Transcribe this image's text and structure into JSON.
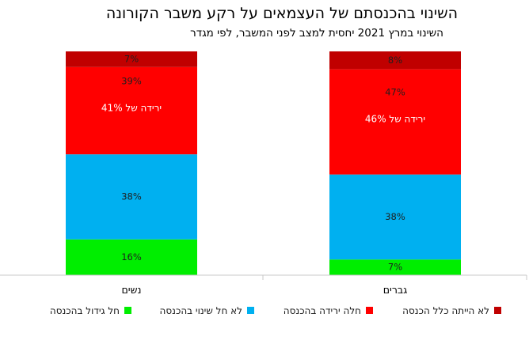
{
  "chart_data": {
    "type": "bar",
    "stacked": true,
    "percent": true,
    "title": "השינוי בהכנסתם של העצמאים על רקע משבר הקורונה",
    "subtitle": "השינוי במרץ 2021 יחסית למצב לפני המשבר, לפי מגדר",
    "categories": [
      "נשים",
      "גברים"
    ],
    "series": [
      {
        "name": "חל גידול בהכנסה",
        "color": "#00ee00",
        "values": [
          16,
          7
        ],
        "labels": [
          "16%",
          "7%"
        ]
      },
      {
        "name": "לא חל שינוי בהכנסה",
        "color": "#00b0f0",
        "values": [
          38,
          38
        ],
        "labels": [
          "38%",
          "38%"
        ]
      },
      {
        "name": "חלה ירידה בהכנסה",
        "color": "#ff0000",
        "values": [
          39,
          47
        ],
        "labels": [
          "39%",
          "47%"
        ]
      },
      {
        "name": "לא הייתה כלל הכנסה",
        "color": "#c00000",
        "values": [
          7,
          8
        ],
        "labels": [
          "7%",
          "8%"
        ]
      }
    ],
    "annotations": [
      "ירידה של 41%",
      "ירידה של 46%"
    ],
    "ylim": [
      0,
      100
    ],
    "legend_position": "bottom",
    "grid": false
  }
}
